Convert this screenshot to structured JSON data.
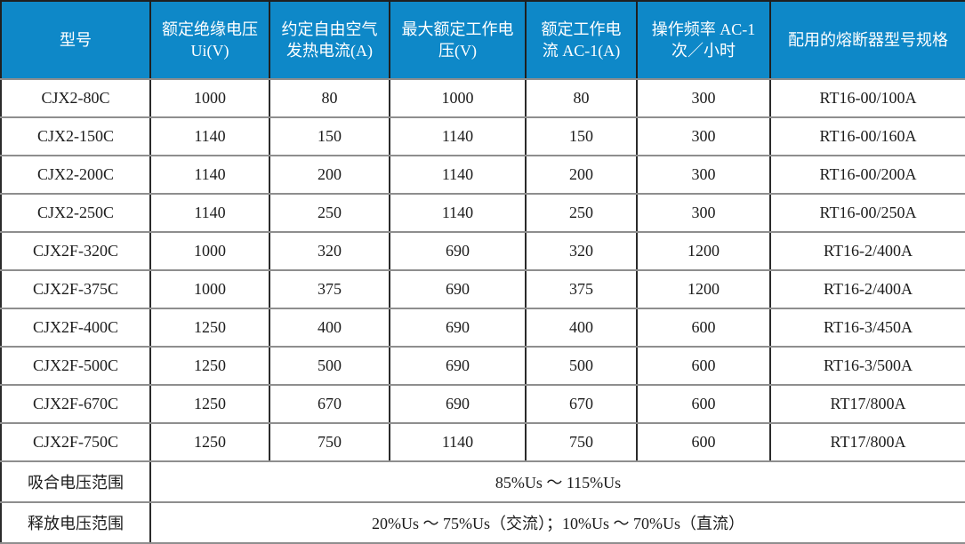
{
  "table": {
    "title_semantic": "contactor-specifications-table",
    "columns": [
      "型号",
      "额定绝缘电压 Ui(V)",
      "约定自由空气发热电流(A)",
      "最大额定工作电压(V)",
      "额定工作电流 AC-1(A)",
      "操作频率 AC-1 次／小时",
      "配用的熔断器型号规格"
    ],
    "rows": [
      [
        "CJX2-80C",
        "1000",
        "80",
        "1000",
        "80",
        "300",
        "RT16-00/100A"
      ],
      [
        "CJX2-150C",
        "1140",
        "150",
        "1140",
        "150",
        "300",
        "RT16-00/160A"
      ],
      [
        "CJX2-200C",
        "1140",
        "200",
        "1140",
        "200",
        "300",
        "RT16-00/200A"
      ],
      [
        "CJX2-250C",
        "1140",
        "250",
        "1140",
        "250",
        "300",
        "RT16-00/250A"
      ],
      [
        "CJX2F-320C",
        "1000",
        "320",
        "690",
        "320",
        "1200",
        "RT16-2/400A"
      ],
      [
        "CJX2F-375C",
        "1000",
        "375",
        "690",
        "375",
        "1200",
        "RT16-2/400A"
      ],
      [
        "CJX2F-400C",
        "1250",
        "400",
        "690",
        "400",
        "600",
        "RT16-3/450A"
      ],
      [
        "CJX2F-500C",
        "1250",
        "500",
        "690",
        "500",
        "600",
        "RT16-3/500A"
      ],
      [
        "CJX2F-670C",
        "1250",
        "670",
        "690",
        "670",
        "600",
        "RT17/800A"
      ],
      [
        "CJX2F-750C",
        "1250",
        "750",
        "1140",
        "750",
        "600",
        "RT17/800A"
      ]
    ],
    "footer_rows": [
      {
        "label": "吸合电压范围",
        "value": "85%Us ～ 115%Us"
      },
      {
        "label": "释放电压范围",
        "value": "20%Us ～ 75%Us（交流）；10%Us ～ 70%Us（直流）"
      }
    ],
    "colors": {
      "header_bg": "#0E88C8",
      "header_text": "#FFFFFF",
      "body_text": "#1C1C1C",
      "grid_horizontal": "#8E8E8E",
      "grid_vertical": "#2B2B2B"
    }
  }
}
